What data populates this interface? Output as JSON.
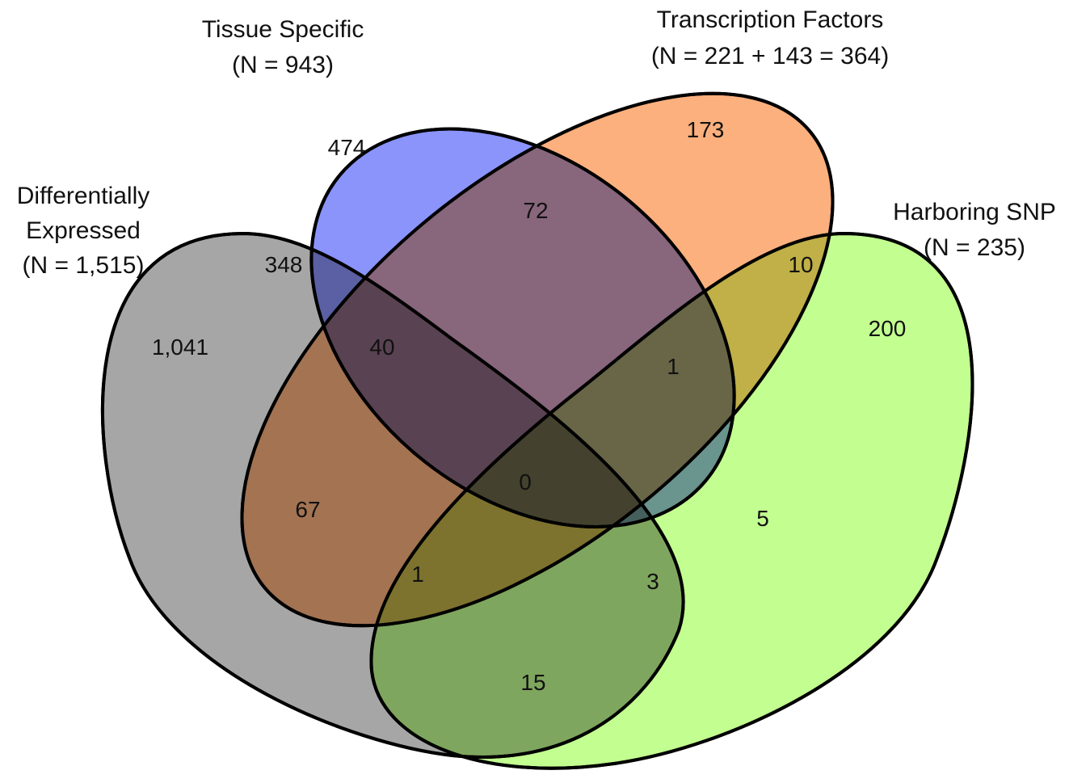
{
  "sets": [
    {
      "id": "de",
      "title": "Differentially",
      "title2": "Expressed",
      "count_label": "(N = 1,515)",
      "color": "#a6a6a6"
    },
    {
      "id": "ts",
      "title": "Tissue Specific",
      "count_label": "(N = 943)",
      "color": "#8a94fb"
    },
    {
      "id": "tf",
      "title": "Transcription Factors",
      "count_label": "(N = 221 + 143 = 364)",
      "color": "#fbb07e"
    },
    {
      "id": "snp",
      "title": "Harboring SNP",
      "count_label": "(N = 235)",
      "color": "#c3ff90"
    }
  ],
  "regions": [
    {
      "sets": [
        "de"
      ],
      "value": "1,041"
    },
    {
      "sets": [
        "ts"
      ],
      "value": "474"
    },
    {
      "sets": [
        "tf"
      ],
      "value": "173"
    },
    {
      "sets": [
        "snp"
      ],
      "value": "200"
    },
    {
      "sets": [
        "de",
        "ts"
      ],
      "value": "348"
    },
    {
      "sets": [
        "ts",
        "tf"
      ],
      "value": "72"
    },
    {
      "sets": [
        "tf",
        "snp"
      ],
      "value": "10"
    },
    {
      "sets": [
        "de",
        "ts",
        "tf"
      ],
      "value": "40"
    },
    {
      "sets": [
        "ts",
        "tf",
        "snp"
      ],
      "value": "1"
    },
    {
      "sets": [
        "de",
        "ts",
        "tf",
        "snp"
      ],
      "value": "0"
    },
    {
      "sets": [
        "de",
        "tf"
      ],
      "value": "67"
    },
    {
      "sets": [
        "de",
        "tf",
        "snp"
      ],
      "value": "1"
    },
    {
      "sets": [
        "ts",
        "snp"
      ],
      "value": "5"
    },
    {
      "sets": [
        "de",
        "ts",
        "snp"
      ],
      "value": "3"
    },
    {
      "sets": [
        "de",
        "snp"
      ],
      "value": "15"
    }
  ]
}
